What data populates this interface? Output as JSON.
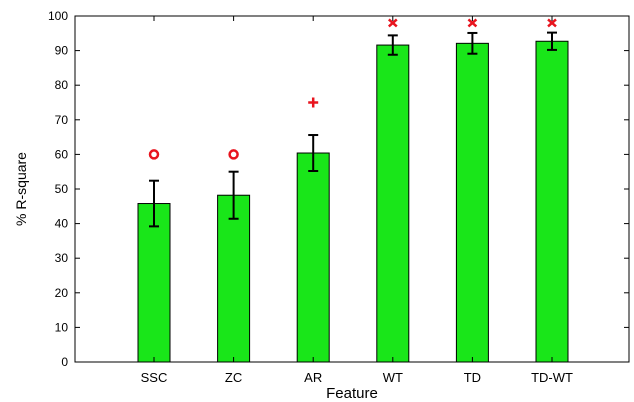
{
  "chart_data": {
    "type": "bar",
    "categories": [
      "SSC",
      "ZC",
      "AR",
      "WT",
      "TD",
      "TD-WT"
    ],
    "values": [
      45.8,
      48.2,
      60.4,
      91.6,
      92.1,
      92.7
    ],
    "error": [
      6.6,
      6.8,
      5.2,
      2.8,
      3.0,
      2.5
    ],
    "markers": [
      "o",
      "o",
      "+",
      "x",
      "x",
      "x"
    ],
    "marker_y": [
      60,
      60,
      75,
      98,
      98,
      98
    ],
    "marker_color": "#e8141e",
    "bar_color": "#19e619",
    "xlabel": "Feature",
    "ylabel": "% R-square",
    "ylim": [
      0,
      100
    ],
    "yticks": [
      0,
      10,
      20,
      30,
      40,
      50,
      60,
      70,
      80,
      90,
      100
    ],
    "grid": false
  }
}
